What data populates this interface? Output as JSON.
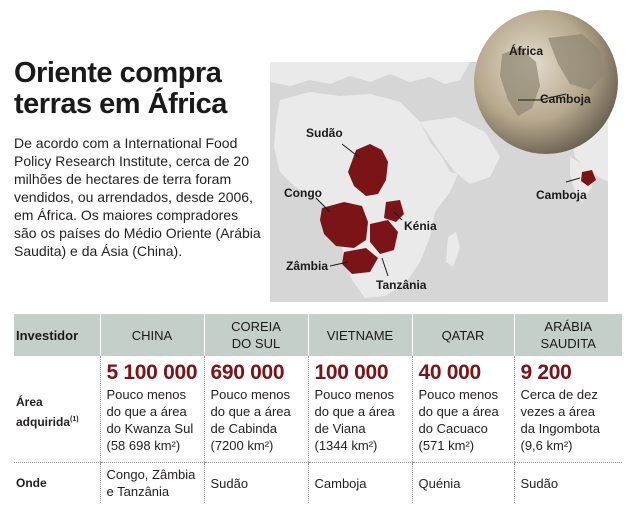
{
  "title": "Oriente compra\nterras em África",
  "intro": "De acordo com a International Food Policy Research Institute, cerca de 20 milhões de hectares de terra foram vendidos, ou arrendados, desde 2006, em África. Os maiores compradores são os países do Médio Oriente (Arábia Saudita) e da Ásia (China).",
  "map": {
    "labels": {
      "sudao": "Sudão",
      "congo": "Congo",
      "kenia": "Kénia",
      "zambia": "Zâmbia",
      "tanzania": "Tanzânia",
      "camboja": "Camboja"
    },
    "globe_labels": {
      "africa": "África",
      "camboja": "Camboja"
    },
    "colors": {
      "highlight": "#7a1416",
      "land": "#eaeaea",
      "sea": "#d6d6d6"
    }
  },
  "table": {
    "header": {
      "investidor": "Investidor",
      "countries": [
        "CHINA",
        "COREIA\nDO SUL",
        "VIETNAME",
        "QATAR",
        "ARÁBIA\nSAUDITA"
      ]
    },
    "area_label": "Área adquirida",
    "area_superscript": "(1)",
    "areas": [
      {
        "value": "5 100 000",
        "desc": "Pouco menos\ndo que a área\ndo Kwanza Sul\n(58 698 km²)"
      },
      {
        "value": "690 000",
        "desc": "Pouco menos\ndo que a área\nde Cabinda\n(7200 km²)"
      },
      {
        "value": "100 000",
        "desc": "Pouco menos\ndo que a área\nde Viana\n(1344 km²)"
      },
      {
        "value": "40 000",
        "desc": "Pouco menos\ndo que a área\ndo Cacuaco\n(571 km²)"
      },
      {
        "value": "9 200",
        "desc": "Cerca de dez\nvezes a área\nda Ingombota\n(9,6 km²)"
      }
    ],
    "onde_label": "Onde",
    "onde": [
      "Congo, Zâmbia\ne Tanzânia",
      "Sudão",
      "Camboja",
      "Quénia",
      "Sudão"
    ]
  }
}
